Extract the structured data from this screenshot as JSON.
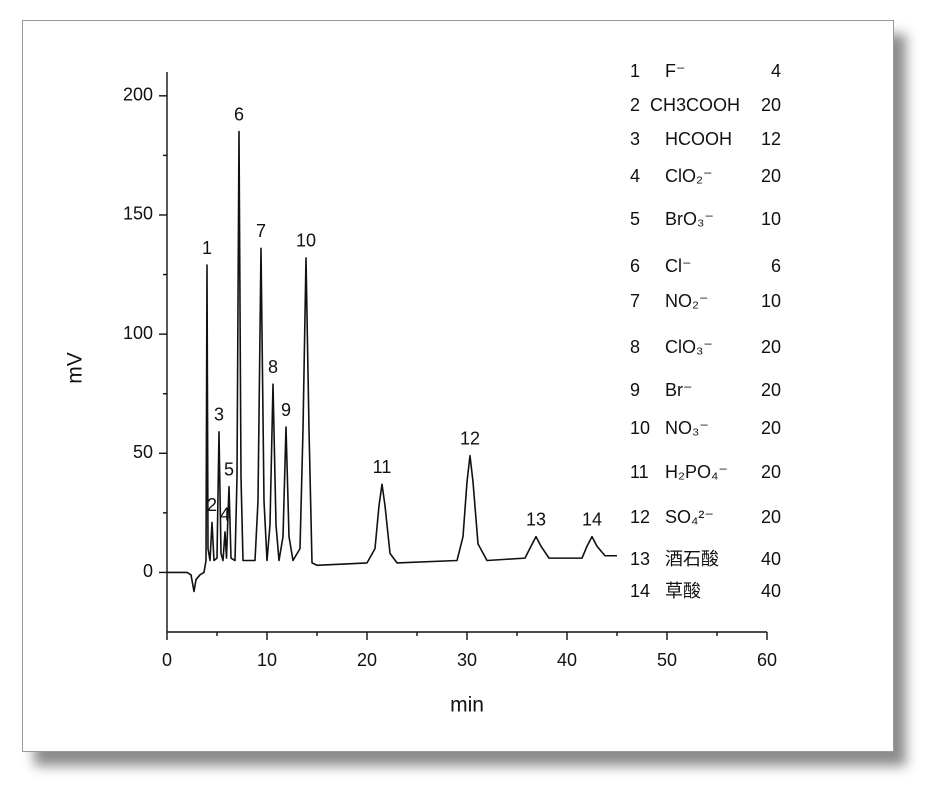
{
  "chart_data": {
    "type": "line",
    "x_label": "min",
    "y_label": "mV",
    "xlim": [
      0,
      60
    ],
    "xticks": [
      0,
      10,
      20,
      30,
      40,
      50,
      60
    ],
    "ylim": [
      -25,
      210
    ],
    "yticks": [
      0,
      50,
      100,
      150,
      200
    ],
    "color": "#111111",
    "x": [
      0,
      2.0,
      2.4,
      2.7,
      2.9,
      3.3,
      3.7,
      3.9,
      4.0,
      4.1,
      4.3,
      4.5,
      4.7,
      5.0,
      5.2,
      5.4,
      5.6,
      5.8,
      5.95,
      6.2,
      6.4,
      6.8,
      7.0,
      7.2,
      7.4,
      7.6,
      8.8,
      9.1,
      9.4,
      9.7,
      10.0,
      10.3,
      10.6,
      10.9,
      11.2,
      11.6,
      11.9,
      12.2,
      12.6,
      13.3,
      13.6,
      13.9,
      14.2,
      14.5,
      15,
      20,
      20.8,
      21.2,
      21.5,
      21.8,
      22.3,
      23,
      29,
      29.6,
      30.0,
      30.3,
      30.6,
      31.1,
      32,
      35.8,
      36.4,
      36.9,
      37.4,
      38.2,
      41.5,
      42.0,
      42.5,
      43.0,
      43.8,
      45
    ],
    "values": [
      0,
      0,
      -1,
      -8,
      -3,
      -1,
      0,
      5,
      129,
      10,
      5,
      21,
      5,
      6,
      59,
      8,
      5,
      17,
      6,
      36,
      6,
      5,
      40,
      185,
      40,
      5,
      5,
      30,
      136,
      30,
      5,
      20,
      79,
      20,
      5,
      15,
      61,
      15,
      5,
      10,
      60,
      132,
      60,
      4,
      3,
      4,
      10,
      28,
      37,
      28,
      8,
      4,
      5,
      15,
      38,
      49,
      38,
      12,
      5,
      6,
      11,
      15,
      11,
      6,
      6,
      11,
      15,
      11,
      7,
      7
    ],
    "peak_labels": [
      {
        "label": "1",
        "x": 4.0,
        "y": 129
      },
      {
        "label": "2",
        "x": 4.5,
        "y": 21
      },
      {
        "label": "3",
        "x": 5.2,
        "y": 59
      },
      {
        "label": "4",
        "x": 5.8,
        "y": 17
      },
      {
        "label": "5",
        "x": 6.2,
        "y": 36
      },
      {
        "label": "6",
        "x": 7.2,
        "y": 185
      },
      {
        "label": "7",
        "x": 9.4,
        "y": 136
      },
      {
        "label": "8",
        "x": 10.6,
        "y": 79
      },
      {
        "label": "9",
        "x": 11.9,
        "y": 61
      },
      {
        "label": "10",
        "x": 13.9,
        "y": 132
      },
      {
        "label": "11",
        "x": 21.5,
        "y": 37
      },
      {
        "label": "12",
        "x": 30.3,
        "y": 49
      },
      {
        "label": "13",
        "x": 36.9,
        "y": 15
      },
      {
        "label": "14",
        "x": 42.5,
        "y": 15
      }
    ],
    "peak_table": [
      {
        "no": 1,
        "compound": "F⁻",
        "amount": 4
      },
      {
        "no": 2,
        "compound": "CH3COOH",
        "amount": 20
      },
      {
        "no": 3,
        "compound": "HCOOH",
        "amount": 12
      },
      {
        "no": 4,
        "compound": "ClO₂⁻",
        "amount": 20
      },
      {
        "no": 5,
        "compound": "BrO₃⁻",
        "amount": 10
      },
      {
        "no": 6,
        "compound": "Cl⁻",
        "amount": 6
      },
      {
        "no": 7,
        "compound": "NO₂⁻",
        "amount": 10
      },
      {
        "no": 8,
        "compound": "ClO₃⁻",
        "amount": 20
      },
      {
        "no": 9,
        "compound": "Br⁻",
        "amount": 20
      },
      {
        "no": 10,
        "compound": "NO₃⁻",
        "amount": 20
      },
      {
        "no": 11,
        "compound": "H₂PO₄⁻",
        "amount": 20
      },
      {
        "no": 12,
        "compound": "SO₄²⁻",
        "amount": 20
      },
      {
        "no": 13,
        "compound": "酒石酸",
        "amount": 40
      },
      {
        "no": 14,
        "compound": "草酸",
        "amount": 40
      }
    ]
  }
}
